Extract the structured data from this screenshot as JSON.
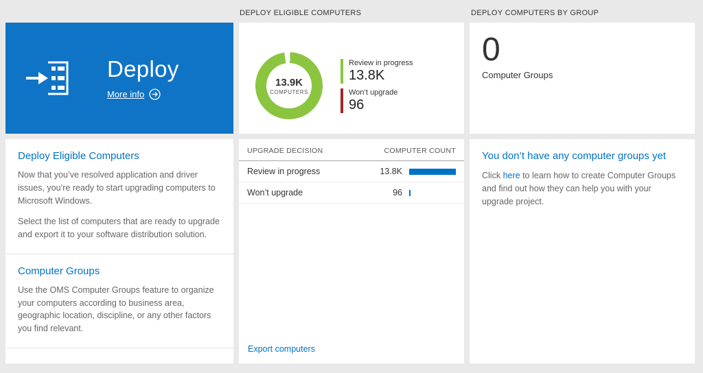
{
  "page": {
    "background": "#e9e9e9",
    "accent_blue": "#0072c6",
    "tile_blue": "#0f74c6",
    "chart_green": "#8bc53f",
    "chart_red": "#a4262c",
    "bar_blue": "#0072c6"
  },
  "headers": {
    "middle": "DEPLOY ELIGIBLE COMPUTERS",
    "right": "DEPLOY COMPUTERS BY GROUP"
  },
  "deploy_tile": {
    "title": "Deploy",
    "more_info_label": "More info"
  },
  "left_card": {
    "section1": {
      "heading": "Deploy Eligible Computers",
      "paragraph1": "Now that you’ve resolved application and driver issues, you’re ready to start upgrading computers to Microsoft Windows.",
      "paragraph2": "Select the list of computers that are ready to upgrade and export it to your software distribution solution."
    },
    "section2": {
      "heading": "Computer Groups",
      "paragraph1": "Use the OMS Computer Groups feature to organize your computers according to business area, geographic location, discipline, or any other factors you find relevant."
    }
  },
  "donut": {
    "center_value": "13.9K",
    "center_label": "COMPUTERS",
    "legend": [
      {
        "label": "Review in progress",
        "value": "13.8K",
        "color": "#8bc53f"
      },
      {
        "label": "Won’t upgrade",
        "value": "96",
        "color": "#a4262c"
      }
    ]
  },
  "table": {
    "headers": [
      "UPGRADE DECISION",
      "COMPUTER COUNT"
    ],
    "rows": [
      {
        "label": "Review in progress",
        "count": "13.8K",
        "bar_pct": 100
      },
      {
        "label": "Won’t upgrade",
        "count": "96",
        "bar_pct": 0.7
      }
    ],
    "export_label": "Export computers"
  },
  "groups_card": {
    "value": "0",
    "label": "Computer Groups"
  },
  "groups_info": {
    "heading": "You don’t have any computer groups yet",
    "text_before": "Click ",
    "link_label": "here",
    "text_after": " to learn how to create Computer Groups and find out how they can help you with your upgrade project."
  }
}
